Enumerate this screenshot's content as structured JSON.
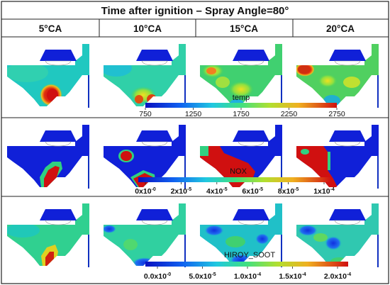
{
  "figure": {
    "title": "Time after ignition – Spray Angle=80°",
    "columns": [
      "5°CA",
      "10°CA",
      "15°CA",
      "20°CA"
    ],
    "rows": [
      "temp",
      "NOX",
      "HIROY_SOOT"
    ]
  },
  "colorbars": [
    {
      "name": "temp",
      "ticks": [
        "750",
        "1250",
        "1750",
        "2250",
        "2750"
      ]
    },
    {
      "name": "NOX",
      "ticks": [
        {
          "base": "0x10",
          "exp": "-0"
        },
        {
          "base": "2x10",
          "exp": "-5"
        },
        {
          "base": "4x10",
          "exp": "-5"
        },
        {
          "base": "6x10",
          "exp": "-5"
        },
        {
          "base": "8x10",
          "exp": "-5"
        },
        {
          "base": "1x10",
          "exp": "-4"
        }
      ]
    },
    {
      "name": "HIROY_SOOT",
      "ticks": [
        {
          "base": "0.0x10",
          "exp": "-0"
        },
        {
          "base": "5.0x10",
          "exp": "-5"
        },
        {
          "base": "1.0x10",
          "exp": "-4"
        },
        {
          "base": "1.5x10",
          "exp": "-4"
        },
        {
          "base": "2.0x10",
          "exp": "-4"
        }
      ]
    }
  ],
  "colors": {
    "blue": "#1020d8",
    "cyan": "#20c8c0",
    "green": "#40d060",
    "yellow": "#e8e020",
    "red": "#e02010",
    "grid": "#222222"
  }
}
